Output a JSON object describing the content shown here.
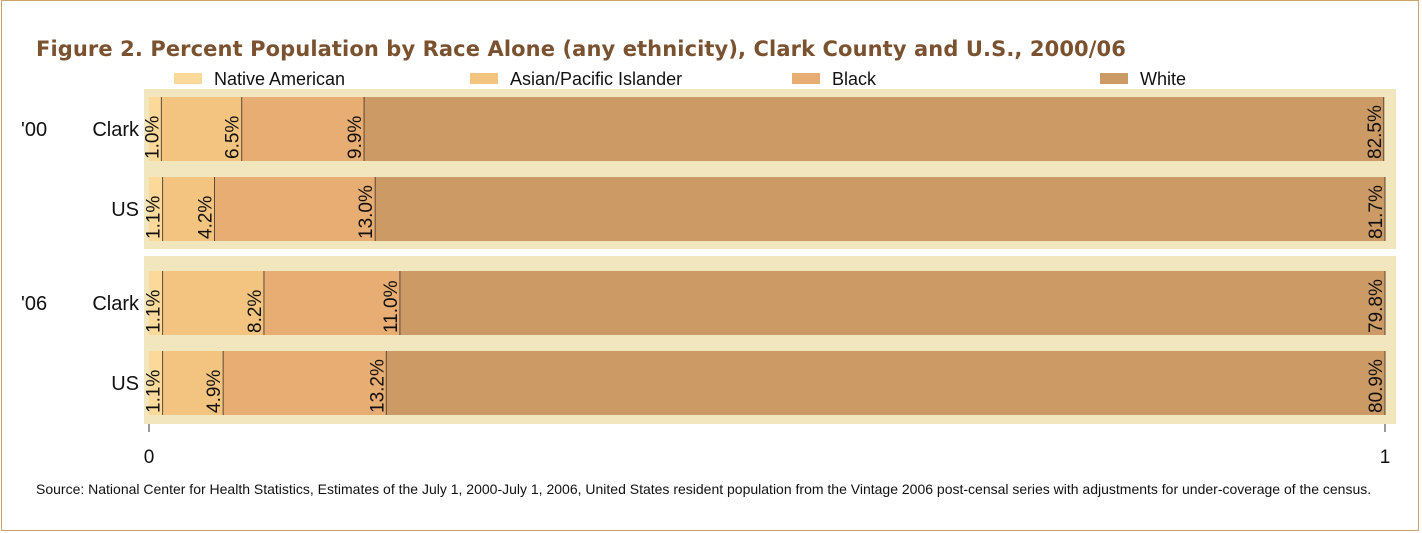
{
  "chart_data": {
    "type": "bar",
    "orientation": "horizontal",
    "stacking": "cumulative-overlay",
    "title": "Figure 2. Percent Population by Race Alone (any ethnicity), Clark County and U.S., 2000/06",
    "xlim": [
      0,
      1
    ],
    "x_ticks": [
      "0",
      "1"
    ],
    "legend_position": "top",
    "groups": [
      {
        "label": "'00",
        "rows": [
          {
            "label": "Clark",
            "values": {
              "Native American": 1.0,
              "Asian/Pacific Islander": 6.5,
              "Black": 9.9,
              "White": 82.5
            },
            "labels": {
              "Native American": "1.0%",
              "Asian/Pacific Islander": "6.5%",
              "Black": "9.9%",
              "White": "82.5%"
            }
          },
          {
            "label": "US",
            "values": {
              "Native American": 1.1,
              "Asian/Pacific Islander": 4.2,
              "Black": 13.0,
              "White": 81.7
            },
            "labels": {
              "Native American": "1.1%",
              "Asian/Pacific Islander": "4.2%",
              "Black": "13.0%",
              "White": "81.7%"
            }
          }
        ]
      },
      {
        "label": "'06",
        "rows": [
          {
            "label": "Clark",
            "values": {
              "Native American": 1.1,
              "Asian/Pacific Islander": 8.2,
              "Black": 11.0,
              "White": 79.8
            },
            "labels": {
              "Native American": "1.1%",
              "Asian/Pacific Islander": "8.2%",
              "Black": "11.0%",
              "White": "79.8%"
            }
          },
          {
            "label": "US",
            "values": {
              "Native American": 1.1,
              "Asian/Pacific Islander": 4.9,
              "Black": 13.2,
              "White": 80.9
            },
            "labels": {
              "Native American": "1.1%",
              "Asian/Pacific Islander": "4.9%",
              "Black": "13.2%",
              "White": "80.9%"
            }
          }
        ]
      }
    ],
    "series": [
      {
        "name": "Native American",
        "color": "#fad99a"
      },
      {
        "name": "Asian/Pacific Islander",
        "color": "#f3c47f"
      },
      {
        "name": "Black",
        "color": "#e8ad72"
      },
      {
        "name": "White",
        "color": "#cb9a65"
      }
    ],
    "colors": {
      "panel_background": "#f2e6bf",
      "tick_line": "#5c4a37",
      "border": "#c9a36a",
      "title": "#7b5230"
    }
  },
  "source_note": "Source: National Center for Health Statistics, Estimates of the July 1, 2000-July 1, 2006, United States resident population from the Vintage 2006 post-censal series with adjustments for under-coverage of the census."
}
